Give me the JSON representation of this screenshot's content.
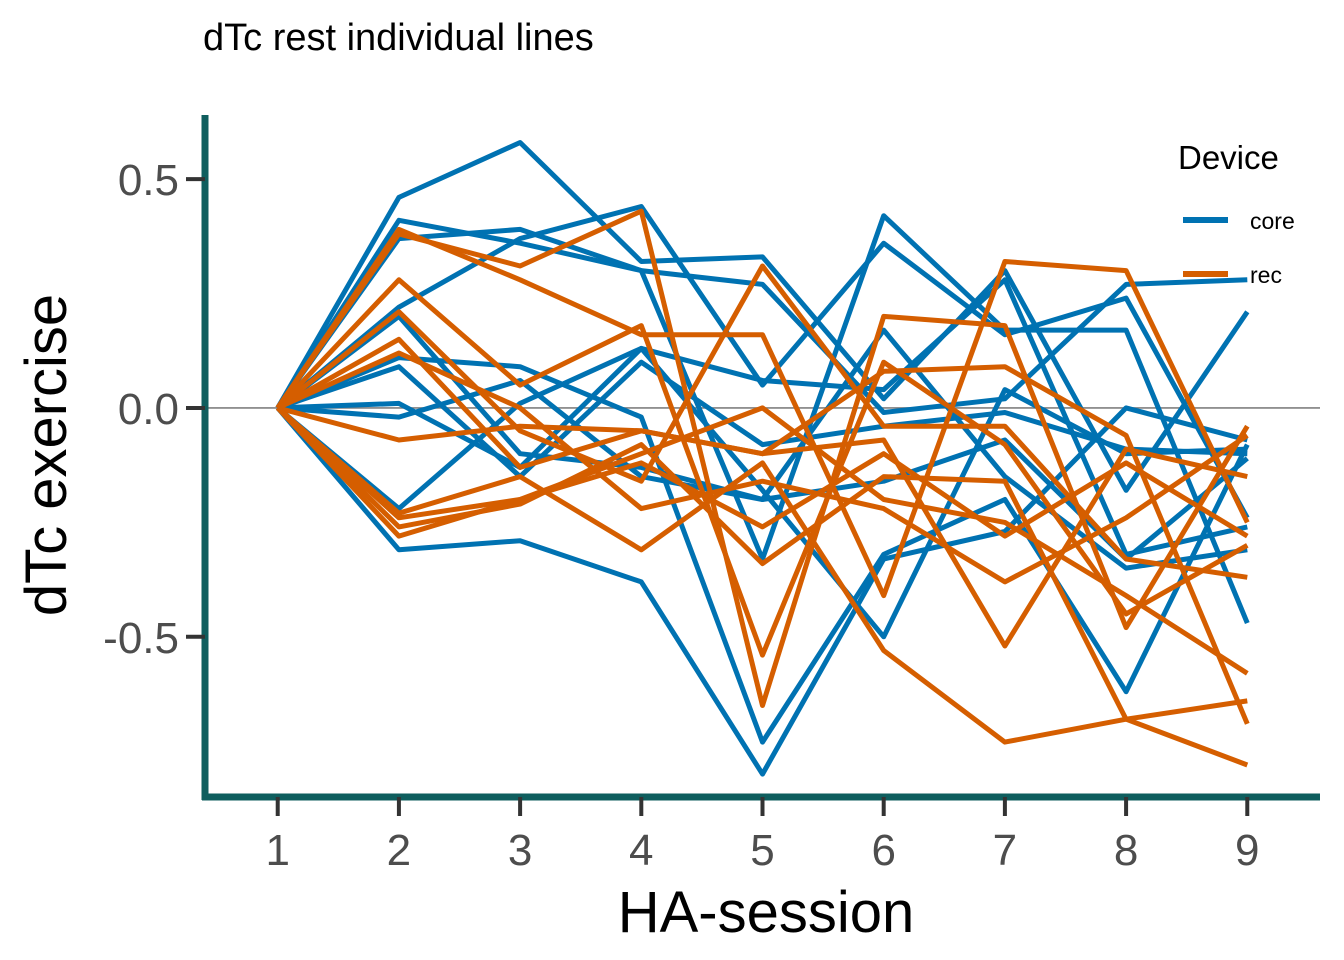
{
  "chart_data": {
    "type": "line",
    "title": "dTc rest individual lines",
    "xlabel": "HA-session",
    "ylabel": "dTc exercise",
    "x": [
      1,
      2,
      3,
      4,
      5,
      6,
      7,
      8,
      9
    ],
    "x_tick_labels": [
      "1",
      "2",
      "3",
      "4",
      "5",
      "6",
      "7",
      "8",
      "9"
    ],
    "y_ticks": [
      0.5,
      0.0,
      -0.5
    ],
    "y_tick_labels": [
      "0.5",
      "0.0",
      "-0.5"
    ],
    "ylim": [
      -0.85,
      0.64
    ],
    "xlim": [
      0.4,
      9.6
    ],
    "reference_line_y": 0,
    "grid": false,
    "legend": {
      "title": "Device",
      "position": "top-right",
      "entries": [
        {
          "label": "core",
          "color": "#0072B2"
        },
        {
          "label": "rec",
          "color": "#D55E00"
        }
      ]
    },
    "colors": {
      "core": "#0072B2",
      "rec": "#D55E00",
      "axis": "#0F5E5E",
      "reference_line": "#808080"
    },
    "series": [
      {
        "device": "core",
        "values": [
          0,
          0.46,
          0.58,
          0.32,
          0.33,
          0.02,
          0.3,
          -0.18,
          0.21
        ]
      },
      {
        "device": "core",
        "values": [
          0,
          0.41,
          0.36,
          0.3,
          0.27,
          -0.01,
          0.02,
          0.27,
          0.28
        ]
      },
      {
        "device": "core",
        "values": [
          0,
          0.37,
          0.39,
          0.3,
          -0.33,
          0.42,
          0.17,
          0.17,
          -0.47
        ]
      },
      {
        "device": "core",
        "values": [
          0,
          0.22,
          0.37,
          0.44,
          0.05,
          0.36,
          0.16,
          0.24,
          -0.24
        ]
      },
      {
        "device": "core",
        "values": [
          0,
          0.11,
          0.09,
          -0.02,
          -0.73,
          -0.32,
          -0.2,
          -0.62,
          -0.08
        ]
      },
      {
        "device": "core",
        "values": [
          0,
          0.01,
          -0.13,
          0.13,
          0.06,
          0.04,
          0.28,
          -0.32,
          -0.26
        ]
      },
      {
        "device": "core",
        "values": [
          0,
          -0.02,
          0.06,
          -0.15,
          -0.2,
          0.17,
          -0.15,
          -0.35,
          -0.31
        ]
      },
      {
        "device": "core",
        "values": [
          0,
          -0.22,
          0.01,
          0.13,
          -0.18,
          -0.5,
          0.04,
          -0.1,
          -0.09
        ]
      },
      {
        "device": "core",
        "values": [
          0,
          -0.31,
          -0.29,
          -0.38,
          -0.8,
          -0.33,
          -0.27,
          0.0,
          -0.07
        ]
      },
      {
        "device": "core",
        "values": [
          0,
          0.09,
          -0.15,
          0.1,
          -0.08,
          -0.04,
          -0.01,
          -0.09,
          -0.1
        ]
      },
      {
        "device": "core",
        "values": [
          0,
          0.2,
          -0.1,
          -0.13,
          -0.2,
          -0.16,
          -0.07,
          -0.33,
          -0.11
        ]
      },
      {
        "device": "rec",
        "values": [
          0,
          0.38,
          0.31,
          0.43,
          -0.65,
          0.2,
          0.18,
          -0.48,
          -0.04
        ]
      },
      {
        "device": "rec",
        "values": [
          0,
          0.39,
          0.28,
          0.16,
          0.16,
          -0.41,
          0.32,
          0.3,
          -0.25
        ]
      },
      {
        "device": "rec",
        "values": [
          0,
          0.28,
          0.05,
          0.18,
          -0.54,
          0.1,
          -0.08,
          -0.45,
          -0.3
        ]
      },
      {
        "device": "rec",
        "values": [
          0,
          0.21,
          -0.05,
          -0.16,
          0.31,
          -0.04,
          -0.04,
          -0.33,
          -0.37
        ]
      },
      {
        "device": "rec",
        "values": [
          0,
          0.15,
          -0.13,
          -0.05,
          -0.1,
          0.08,
          0.09,
          -0.06,
          -0.69
        ]
      },
      {
        "device": "rec",
        "values": [
          0,
          0.12,
          0.0,
          -0.22,
          -0.16,
          -0.22,
          -0.38,
          -0.24,
          -0.06
        ]
      },
      {
        "device": "rec",
        "values": [
          0,
          -0.07,
          -0.04,
          -0.05,
          -0.1,
          -0.07,
          -0.52,
          -0.09,
          -0.15
        ]
      },
      {
        "device": "rec",
        "values": [
          0,
          -0.23,
          -0.15,
          -0.31,
          -0.12,
          -0.53,
          -0.73,
          -0.68,
          -0.64
        ]
      },
      {
        "device": "rec",
        "values": [
          0,
          -0.24,
          -0.2,
          -0.1,
          0.0,
          -0.2,
          -0.25,
          -0.41,
          -0.58
        ]
      },
      {
        "device": "rec",
        "values": [
          0,
          -0.26,
          -0.21,
          -0.08,
          -0.34,
          -0.15,
          -0.16,
          -0.68,
          -0.78
        ]
      },
      {
        "device": "rec",
        "values": [
          0,
          -0.28,
          -0.2,
          -0.12,
          -0.26,
          -0.1,
          -0.28,
          -0.12,
          -0.28
        ]
      }
    ]
  }
}
